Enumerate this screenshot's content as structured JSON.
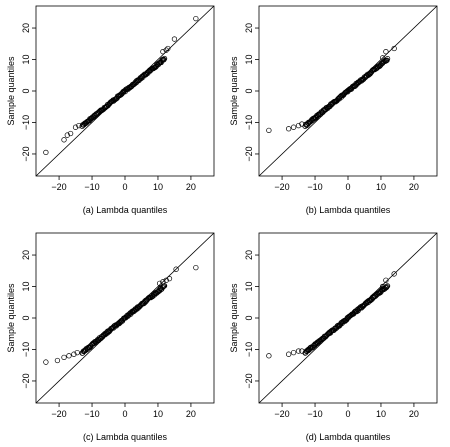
{
  "chart_data": [
    {
      "type": "scatter",
      "caption": "(a) Lambda quantiles",
      "ylabel": "Sample quantiles",
      "xlim": [
        -27,
        27
      ],
      "ylim": [
        -27,
        27
      ],
      "xticks": [
        -20,
        -10,
        0,
        10,
        20
      ],
      "yticks": [
        -20,
        -10,
        0,
        10,
        20
      ],
      "reference_line": {
        "slope": 1,
        "intercept": 0
      },
      "sample_slope": 0.85,
      "outliers": [
        [
          -24,
          -19.5
        ],
        [
          -18.5,
          -15.5
        ],
        [
          -17.5,
          -14
        ],
        [
          -16.5,
          -13.5
        ],
        [
          -15,
          -11.5
        ],
        [
          -14,
          -11
        ],
        [
          11.5,
          12.5
        ],
        [
          12.5,
          13
        ],
        [
          13,
          13.5
        ],
        [
          15,
          16.5
        ],
        [
          21.5,
          23
        ]
      ]
    },
    {
      "type": "scatter",
      "caption": "(b) Lambda quantiles",
      "ylabel": "Sample quantiles",
      "xlim": [
        -27,
        27
      ],
      "ylim": [
        -27,
        27
      ],
      "xticks": [
        -20,
        -10,
        0,
        10,
        20
      ],
      "yticks": [
        -20,
        -10,
        0,
        10,
        20
      ],
      "reference_line": {
        "slope": 1,
        "intercept": 0
      },
      "sample_slope": 0.85,
      "outliers": [
        [
          -24,
          -12.5
        ],
        [
          -18,
          -12
        ],
        [
          -16.5,
          -11.5
        ],
        [
          -15,
          -11
        ],
        [
          -14,
          -10.5
        ],
        [
          10.5,
          10.5
        ],
        [
          11.5,
          12.5
        ],
        [
          14,
          13.5
        ]
      ]
    },
    {
      "type": "scatter",
      "caption": "(c) Lambda quantiles",
      "ylabel": "Sample quantiles",
      "xlim": [
        -27,
        27
      ],
      "ylim": [
        -27,
        27
      ],
      "xticks": [
        -20,
        -10,
        0,
        10,
        20
      ],
      "yticks": [
        -20,
        -10,
        0,
        10,
        20
      ],
      "reference_line": {
        "slope": 1,
        "intercept": 0
      },
      "sample_slope": 0.85,
      "outliers": [
        [
          -24,
          -14
        ],
        [
          -20.5,
          -13.5
        ],
        [
          -18.5,
          -12.5
        ],
        [
          -17,
          -12
        ],
        [
          -15.5,
          -11.5
        ],
        [
          -14.5,
          -11
        ],
        [
          10.5,
          11
        ],
        [
          11.5,
          11.5
        ],
        [
          12.5,
          12
        ],
        [
          13.5,
          12.5
        ],
        [
          15.5,
          15.5
        ],
        [
          21.5,
          16
        ]
      ]
    },
    {
      "type": "scatter",
      "caption": "(d) Lambda quantiles",
      "ylabel": "Sample quantiles",
      "xlim": [
        -27,
        27
      ],
      "ylim": [
        -27,
        27
      ],
      "xticks": [
        -20,
        -10,
        0,
        10,
        20
      ],
      "yticks": [
        -20,
        -10,
        0,
        10,
        20
      ],
      "reference_line": {
        "slope": 1,
        "intercept": 0
      },
      "sample_slope": 0.85,
      "outliers": [
        [
          -24,
          -12
        ],
        [
          -18,
          -11.5
        ],
        [
          -16.5,
          -11
        ],
        [
          -15,
          -10.5
        ],
        [
          -14,
          -10.5
        ],
        [
          10.5,
          10
        ],
        [
          11.5,
          12
        ],
        [
          14,
          14
        ]
      ]
    }
  ]
}
